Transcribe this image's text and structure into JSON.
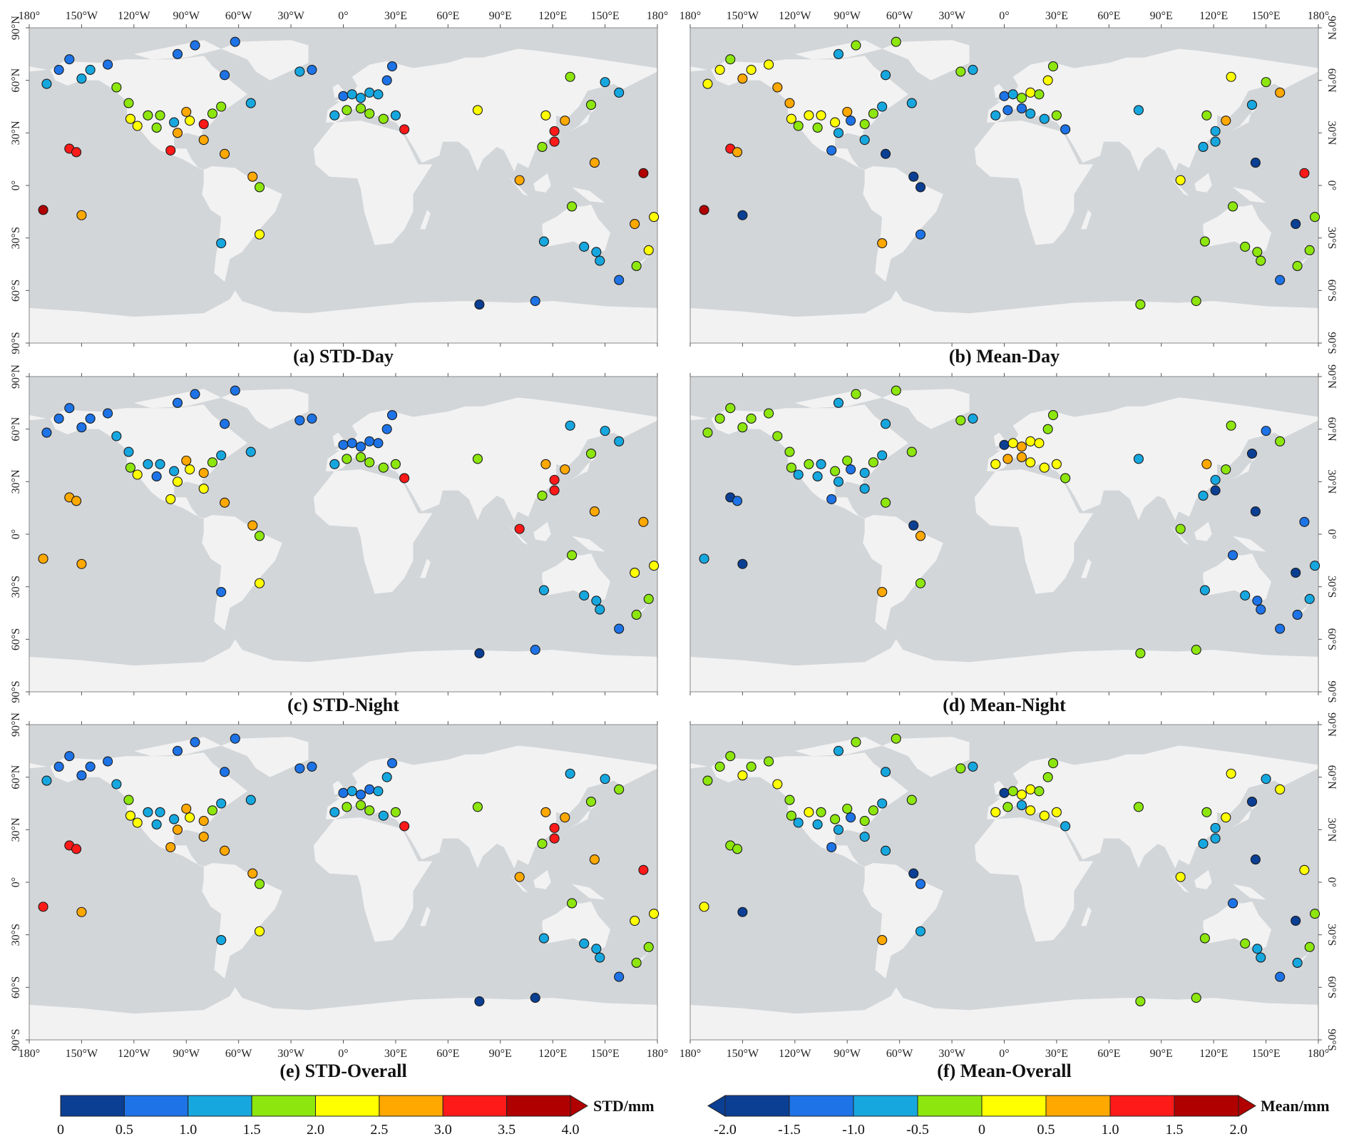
{
  "panels": [
    {
      "caption": "(a) STD-Day",
      "scale": "std",
      "values": [
        1.25,
        0.75,
        0.75,
        1.25,
        1.25,
        0.75,
        1.75,
        1.75,
        2.25,
        2.25,
        1.75,
        1.75,
        1.75,
        1.25,
        2.75,
        2.75,
        2.25,
        3.25,
        1.75,
        1.75,
        3.25,
        2.75,
        2.75,
        0.75,
        0.75,
        0.75,
        0.75,
        1.25,
        1.25,
        0.75,
        1.75,
        2.75,
        1.25,
        2.25,
        3.25,
        3.25,
        3.75,
        2.75,
        0.75,
        1.25,
        1.25,
        1.25,
        1.25,
        0.75,
        1.25,
        1.75,
        1.75,
        1.75,
        1.75,
        1.25,
        3.25,
        0.75,
        2.25,
        2.25,
        3.25,
        2.75,
        3.25,
        1.75,
        1.75,
        1.75,
        1.25,
        1.25,
        2.75,
        2.75,
        3.75,
        1.75,
        1.25,
        1.25,
        1.25,
        1.25,
        1.75,
        2.25,
        2.25,
        2.75,
        0.75,
        0.25,
        0.75
      ]
    },
    {
      "caption": "(b) Mean-Day",
      "scale": "mean",
      "values": [
        0.25,
        0.25,
        -0.25,
        0.75,
        0.25,
        0.25,
        0.75,
        0.75,
        0.25,
        -0.25,
        0.25,
        0.25,
        -0.25,
        0.25,
        0.75,
        -0.75,
        -1.25,
        -0.25,
        -0.25,
        -0.75,
        -1.25,
        -0.75,
        -1.75,
        -0.75,
        -0.25,
        -0.25,
        -0.75,
        -0.75,
        -0.25,
        -0.75,
        -1.75,
        -1.75,
        0.75,
        -1.25,
        1.25,
        0.75,
        1.75,
        -1.75,
        -1.25,
        -0.75,
        -0.25,
        0.25,
        -0.25,
        0.25,
        -0.75,
        -1.25,
        -1.25,
        -0.75,
        -0.75,
        -0.25,
        -1.25,
        -0.25,
        -0.75,
        -0.25,
        -0.75,
        0.75,
        -0.75,
        -0.75,
        0.25,
        -0.75,
        -0.25,
        0.75,
        -1.75,
        0.25,
        1.25,
        -0.25,
        -0.25,
        -0.25,
        -0.25,
        -0.25,
        -0.25,
        -0.25,
        -0.25,
        -1.75,
        -1.25,
        -0.25,
        -0.25
      ]
    },
    {
      "caption": "(c) STD-Night",
      "scale": "std",
      "values": [
        0.75,
        0.75,
        0.75,
        0.75,
        0.75,
        0.75,
        1.25,
        1.25,
        1.75,
        2.25,
        1.25,
        1.25,
        0.75,
        1.25,
        2.75,
        2.25,
        2.25,
        2.75,
        1.75,
        1.25,
        2.25,
        2.25,
        2.75,
        0.75,
        0.75,
        0.75,
        0.75,
        1.25,
        0.75,
        0.75,
        1.75,
        2.75,
        0.75,
        2.25,
        2.75,
        2.75,
        2.75,
        2.75,
        0.75,
        0.75,
        0.75,
        0.75,
        0.75,
        0.75,
        1.25,
        1.75,
        1.75,
        1.75,
        1.75,
        1.75,
        3.25,
        0.75,
        1.75,
        2.75,
        3.25,
        2.75,
        3.25,
        1.75,
        1.25,
        1.75,
        1.25,
        1.25,
        2.75,
        3.25,
        2.75,
        1.75,
        1.25,
        1.25,
        1.25,
        1.25,
        1.75,
        1.75,
        2.25,
        2.25,
        0.75,
        0.25,
        0.75
      ]
    },
    {
      "caption": "(d) Mean-Night",
      "scale": "mean",
      "values": [
        -0.25,
        -0.25,
        -0.25,
        -0.25,
        -0.25,
        -0.25,
        -0.25,
        -0.25,
        -0.25,
        -0.75,
        -0.25,
        -0.75,
        -0.75,
        -0.25,
        -0.25,
        -0.75,
        -1.25,
        -0.75,
        -0.25,
        -0.75,
        -1.25,
        -0.75,
        -0.25,
        -0.75,
        -0.25,
        -0.25,
        -0.75,
        -0.25,
        -0.25,
        -0.75,
        0.75,
        -1.75,
        0.75,
        -0.25,
        -1.75,
        -1.25,
        -0.75,
        -1.75,
        -1.75,
        0.25,
        0.75,
        0.25,
        0.25,
        -0.25,
        0.25,
        0.75,
        0.75,
        0.25,
        0.25,
        0.25,
        -0.25,
        -0.25,
        -0.75,
        0.75,
        -0.75,
        -0.25,
        -1.75,
        -0.75,
        -0.25,
        -1.75,
        -1.25,
        -0.25,
        -1.75,
        -0.25,
        -1.25,
        -1.25,
        -0.75,
        -0.75,
        -1.25,
        -1.25,
        -1.25,
        -0.75,
        -0.75,
        -1.75,
        -1.25,
        -0.25,
        -0.25
      ]
    },
    {
      "caption": "(e) STD-Overall",
      "scale": "std",
      "values": [
        1.25,
        0.75,
        0.75,
        0.75,
        0.75,
        0.75,
        1.25,
        1.75,
        2.25,
        2.25,
        1.25,
        1.25,
        1.25,
        1.25,
        2.75,
        2.75,
        2.25,
        2.75,
        1.75,
        1.25,
        2.75,
        2.75,
        2.75,
        0.75,
        0.75,
        0.75,
        0.75,
        1.25,
        0.75,
        0.75,
        1.75,
        2.75,
        1.25,
        2.25,
        3.25,
        3.25,
        3.25,
        2.75,
        0.75,
        1.25,
        0.75,
        0.75,
        1.25,
        1.25,
        1.25,
        1.75,
        1.75,
        1.75,
        1.25,
        1.75,
        3.25,
        0.75,
        1.75,
        2.75,
        3.25,
        2.75,
        3.25,
        1.75,
        1.25,
        1.75,
        1.25,
        1.75,
        2.75,
        2.75,
        3.25,
        1.75,
        1.25,
        1.25,
        1.25,
        1.25,
        1.75,
        1.75,
        2.25,
        2.25,
        0.75,
        0.25,
        0.25
      ]
    },
    {
      "caption": "(f) Mean-Overall",
      "scale": "mean",
      "values": [
        -0.25,
        -0.25,
        -0.25,
        0.25,
        -0.25,
        -0.25,
        0.25,
        -0.25,
        -0.25,
        -0.75,
        0.25,
        -0.25,
        -0.75,
        -0.25,
        -0.25,
        -0.75,
        -1.25,
        -0.25,
        -0.25,
        -0.75,
        -1.25,
        -0.75,
        -0.75,
        -0.75,
        -0.25,
        -0.25,
        -0.75,
        -0.25,
        -0.25,
        -0.75,
        -1.25,
        -1.75,
        0.75,
        -0.75,
        -0.25,
        -0.25,
        0.25,
        -1.75,
        -1.75,
        -0.25,
        0.25,
        0.25,
        -0.25,
        -0.25,
        0.25,
        -0.25,
        -0.75,
        0.25,
        0.25,
        0.25,
        -0.75,
        -0.25,
        -0.25,
        -0.25,
        -0.75,
        0.25,
        -0.75,
        -0.75,
        0.25,
        -1.75,
        -0.75,
        0.25,
        -1.75,
        0.25,
        0.25,
        -1.25,
        -0.25,
        -0.25,
        -0.75,
        -0.75,
        -0.75,
        -0.25,
        -0.25,
        -1.75,
        -1.25,
        -0.25,
        -0.25
      ]
    }
  ],
  "stations": {
    "lon": [
      -170,
      -163,
      -157,
      -150,
      -145,
      -135,
      -130,
      -123,
      -122,
      -118,
      -112,
      -105,
      -107,
      -97,
      -90,
      -95,
      -88,
      -80,
      -75,
      -70,
      -99,
      -80,
      -68,
      -95,
      -85,
      -62,
      -68,
      -53,
      -25,
      -18,
      -48,
      -52,
      -70,
      -48,
      -157,
      -153,
      -172,
      -150,
      0,
      5,
      10,
      15,
      20,
      25,
      -5,
      2,
      10,
      15,
      23,
      30,
      35,
      28,
      77,
      116,
      121,
      127,
      121,
      114,
      130,
      142,
      150,
      158,
      144,
      101,
      172,
      131,
      115,
      138,
      145,
      147,
      168,
      175,
      178,
      167,
      158,
      78,
      110
    ],
    "lat": [
      58,
      66,
      72,
      61,
      66,
      69,
      56,
      47,
      38,
      34,
      40,
      40,
      33,
      36,
      42,
      30,
      37,
      35,
      41,
      45,
      20,
      26,
      18,
      75,
      80,
      82,
      63,
      47,
      65,
      66,
      -1,
      5,
      -33,
      -28,
      21,
      19,
      -14,
      -17,
      51,
      52,
      50,
      53,
      52,
      60,
      40,
      43,
      44,
      41,
      38,
      40,
      32,
      68,
      43,
      40,
      31,
      37,
      25,
      22,
      62,
      46,
      59,
      53,
      13,
      3,
      7,
      -12,
      -32,
      -35,
      -38,
      -43,
      -46,
      -37,
      -18,
      -22,
      -54,
      -68,
      -66
    ]
  },
  "lon_ticks": [
    {
      "value": -180,
      "label": "180°"
    },
    {
      "value": -150,
      "label": "150°W"
    },
    {
      "value": -120,
      "label": "120°W"
    },
    {
      "value": -90,
      "label": "90°W"
    },
    {
      "value": -60,
      "label": "60°W"
    },
    {
      "value": -30,
      "label": "30°W"
    },
    {
      "value": 0,
      "label": "0°"
    },
    {
      "value": 30,
      "label": "30°E"
    },
    {
      "value": 60,
      "label": "60°E"
    },
    {
      "value": 90,
      "label": "90°E"
    },
    {
      "value": 120,
      "label": "120°E"
    },
    {
      "value": 150,
      "label": "150°E"
    },
    {
      "value": 180,
      "label": "180°"
    }
  ],
  "lat_ticks": [
    {
      "value": -90,
      "label": "90°S"
    },
    {
      "value": -60,
      "label": "60°S"
    },
    {
      "value": -30,
      "label": "30°S"
    },
    {
      "value": 0,
      "label": "0°"
    },
    {
      "value": 30,
      "label": "30°N"
    },
    {
      "value": 60,
      "label": "60°N"
    },
    {
      "value": 90,
      "label": "90°N"
    }
  ],
  "colorbars": {
    "std": {
      "label": "STD/mm",
      "extend": "max",
      "colors": [
        "#0b3f94",
        "#1e73e6",
        "#17a7df",
        "#8de60e",
        "#ffff00",
        "#ffa800",
        "#ff1a1a",
        "#b00000"
      ],
      "bounds": [
        0,
        0.5,
        {
          "value": 1,
          "label": "1.0"
        },
        1.5,
        {
          "value": 2,
          "label": "2.0"
        },
        2.5,
        {
          "value": 3,
          "label": "3.0"
        },
        3.5,
        {
          "value": 4,
          "label": "4.0"
        }
      ]
    },
    "mean": {
      "label": "Mean/mm",
      "extend": "both",
      "colors": [
        "#0b3f94",
        "#1e73e6",
        "#17a7df",
        "#8de60e",
        "#ffff00",
        "#ffa800",
        "#ff1a1a",
        "#b00000"
      ],
      "bounds": [
        {
          "value": -2,
          "label": "-2.0"
        },
        -1.5,
        {
          "value": -1,
          "label": "-1.0"
        },
        -0.5,
        0,
        0.5,
        {
          "value": 1,
          "label": "1.0"
        },
        1.5,
        {
          "value": 2,
          "label": "2.0"
        }
      ]
    }
  }
}
